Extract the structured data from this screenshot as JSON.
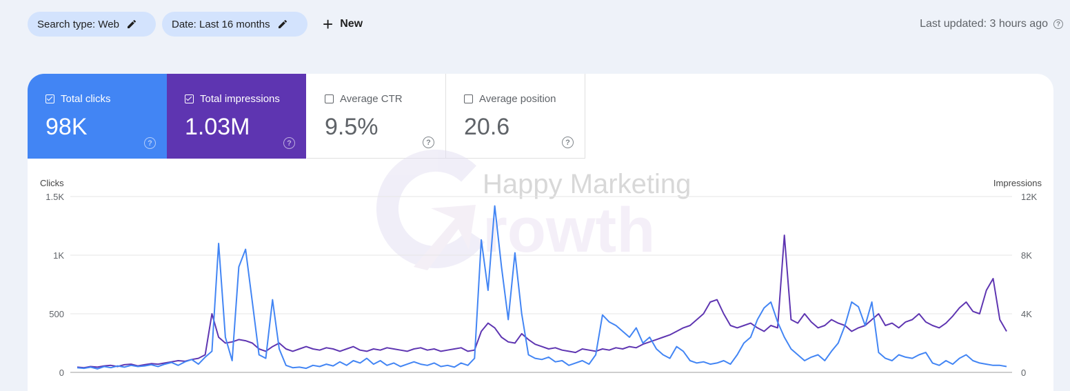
{
  "filters": {
    "search_type": "Search type: Web",
    "date": "Date: Last 16 months",
    "new_label": "New"
  },
  "last_updated": "Last updated: 3 hours ago",
  "metrics": [
    {
      "label": "Total clicks",
      "value": "98K",
      "checked": true,
      "color": "#4285f4"
    },
    {
      "label": "Total impressions",
      "value": "1.03M",
      "checked": true,
      "color": "#5e35b1"
    },
    {
      "label": "Average CTR",
      "value": "9.5%",
      "checked": false
    },
    {
      "label": "Average position",
      "value": "20.6",
      "checked": false
    }
  ],
  "watermark": "Happy Marketing Growth",
  "chart_data": {
    "type": "line",
    "left_axis_label": "Clicks",
    "right_axis_label": "Impressions",
    "left_ticks": [
      "0",
      "500",
      "1K",
      "1.5K"
    ],
    "right_ticks": [
      "0",
      "4K",
      "8K",
      "12K"
    ],
    "ylim_left": [
      0,
      1500
    ],
    "ylim_right": [
      0,
      12000
    ],
    "grid": true,
    "series": [
      {
        "name": "Total clicks",
        "color": "#4285f4",
        "axis": "left",
        "values": [
          40,
          35,
          45,
          30,
          50,
          40,
          55,
          45,
          60,
          50,
          55,
          65,
          50,
          70,
          85,
          60,
          90,
          110,
          70,
          130,
          180,
          1100,
          300,
          100,
          900,
          1050,
          600,
          150,
          120,
          620,
          200,
          60,
          40,
          45,
          35,
          60,
          50,
          70,
          55,
          90,
          60,
          100,
          80,
          120,
          70,
          100,
          60,
          80,
          50,
          70,
          90,
          70,
          60,
          80,
          50,
          60,
          45,
          80,
          60,
          120,
          1130,
          700,
          1420,
          900,
          450,
          1020,
          500,
          150,
          120,
          110,
          130,
          90,
          100,
          60,
          80,
          100,
          70,
          150,
          490,
          430,
          400,
          350,
          300,
          380,
          250,
          300,
          200,
          150,
          120,
          220,
          180,
          100,
          80,
          90,
          70,
          80,
          100,
          70,
          150,
          250,
          300,
          450,
          550,
          600,
          430,
          300,
          200,
          150,
          100,
          130,
          150,
          100,
          180,
          250,
          400,
          600,
          560,
          400,
          600,
          170,
          120,
          100,
          150,
          130,
          120,
          150,
          170,
          80,
          60,
          100,
          70,
          120,
          150,
          100,
          80,
          70,
          60,
          60,
          50
        ]
      },
      {
        "name": "Total impressions",
        "color": "#5e35b1",
        "axis": "left",
        "values": [
          45,
          40,
          50,
          45,
          55,
          60,
          50,
          65,
          70,
          55,
          65,
          75,
          70,
          80,
          90,
          100,
          95,
          110,
          120,
          150,
          500,
          300,
          250,
          260,
          280,
          270,
          250,
          200,
          180,
          220,
          250,
          200,
          180,
          200,
          220,
          200,
          190,
          210,
          200,
          180,
          200,
          220,
          190,
          180,
          200,
          190,
          210,
          200,
          190,
          180,
          200,
          210,
          190,
          200,
          180,
          190,
          200,
          210,
          180,
          190,
          350,
          420,
          380,
          300,
          260,
          250,
          330,
          280,
          240,
          220,
          200,
          210,
          190,
          180,
          170,
          200,
          190,
          180,
          200,
          190,
          210,
          200,
          220,
          210,
          240,
          260,
          280,
          300,
          320,
          350,
          380,
          400,
          450,
          500,
          600,
          620,
          500,
          400,
          380,
          400,
          420,
          380,
          350,
          400,
          380,
          1170,
          450,
          420,
          500,
          430,
          380,
          400,
          450,
          420,
          400,
          350,
          380,
          400,
          450,
          500,
          400,
          420,
          380,
          430,
          450,
          500,
          430,
          400,
          380,
          420,
          480,
          550,
          600,
          520,
          500,
          700,
          800,
          450,
          350
        ]
      }
    ]
  }
}
